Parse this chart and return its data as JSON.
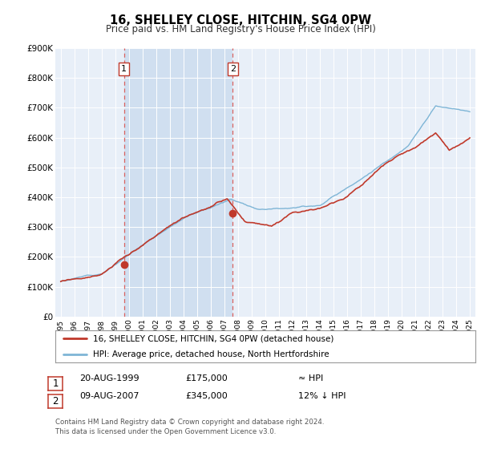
{
  "title": "16, SHELLEY CLOSE, HITCHIN, SG4 0PW",
  "subtitle": "Price paid vs. HM Land Registry's House Price Index (HPI)",
  "legend_line1": "16, SHELLEY CLOSE, HITCHIN, SG4 0PW (detached house)",
  "legend_line2": "HPI: Average price, detached house, North Hertfordshire",
  "footnote1": "Contains HM Land Registry data © Crown copyright and database right 2024.",
  "footnote2": "This data is licensed under the Open Government Licence v3.0.",
  "table_row1": [
    "1",
    "20-AUG-1999",
    "£175,000",
    "≈ HPI"
  ],
  "table_row2": [
    "2",
    "09-AUG-2007",
    "£345,000",
    "12% ↓ HPI"
  ],
  "hpi_color": "#7eb5d6",
  "price_color": "#c0392b",
  "marker_color": "#c0392b",
  "dashed_color": "#d9534f",
  "background_plot": "#e8eff8",
  "shaded_region_color": "#d0dff0",
  "background_fig": "#ffffff",
  "ylim": [
    0,
    900000
  ],
  "ytick_labels": [
    "£0",
    "£100K",
    "£200K",
    "£300K",
    "£400K",
    "£500K",
    "£600K",
    "£700K",
    "£800K",
    "£900K"
  ],
  "ytick_values": [
    0,
    100000,
    200000,
    300000,
    400000,
    500000,
    600000,
    700000,
    800000,
    900000
  ],
  "xmin": 1994.6,
  "xmax": 2025.4,
  "transaction1_x": 1999.634,
  "transaction1_y": 175000,
  "transaction2_x": 2007.607,
  "transaction2_y": 345000
}
